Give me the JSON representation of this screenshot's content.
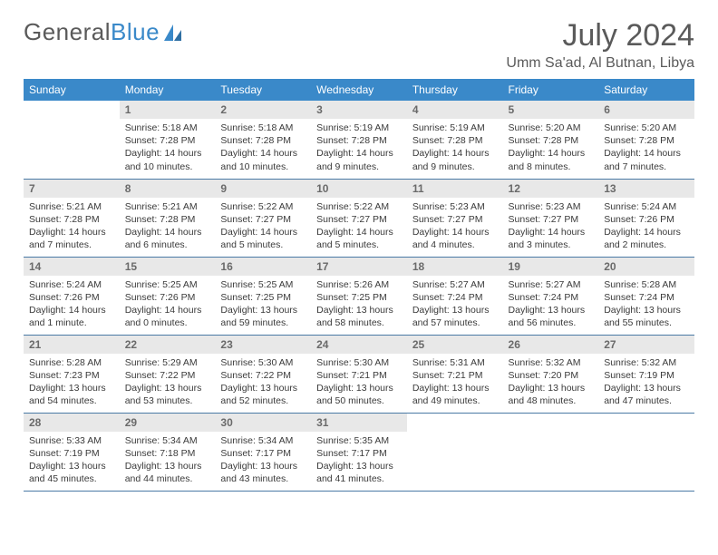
{
  "brand": {
    "part1": "General",
    "part2": "Blue"
  },
  "title": "July 2024",
  "location": "Umm Sa'ad, Al Butnan, Libya",
  "colors": {
    "header_bg": "#3a89c9",
    "header_text": "#ffffff",
    "daynum_bg": "#e8e8e8",
    "daynum_text": "#6a6a6a",
    "body_text": "#3a3a3a",
    "border": "#4a7aa5",
    "brand_gray": "#5a5a5a",
    "brand_blue": "#3a89c9"
  },
  "day_headers": [
    "Sunday",
    "Monday",
    "Tuesday",
    "Wednesday",
    "Thursday",
    "Friday",
    "Saturday"
  ],
  "weeks": [
    [
      null,
      {
        "n": "1",
        "sr": "5:18 AM",
        "ss": "7:28 PM",
        "dl": "14 hours and 10 minutes."
      },
      {
        "n": "2",
        "sr": "5:18 AM",
        "ss": "7:28 PM",
        "dl": "14 hours and 10 minutes."
      },
      {
        "n": "3",
        "sr": "5:19 AM",
        "ss": "7:28 PM",
        "dl": "14 hours and 9 minutes."
      },
      {
        "n": "4",
        "sr": "5:19 AM",
        "ss": "7:28 PM",
        "dl": "14 hours and 9 minutes."
      },
      {
        "n": "5",
        "sr": "5:20 AM",
        "ss": "7:28 PM",
        "dl": "14 hours and 8 minutes."
      },
      {
        "n": "6",
        "sr": "5:20 AM",
        "ss": "7:28 PM",
        "dl": "14 hours and 7 minutes."
      }
    ],
    [
      {
        "n": "7",
        "sr": "5:21 AM",
        "ss": "7:28 PM",
        "dl": "14 hours and 7 minutes."
      },
      {
        "n": "8",
        "sr": "5:21 AM",
        "ss": "7:28 PM",
        "dl": "14 hours and 6 minutes."
      },
      {
        "n": "9",
        "sr": "5:22 AM",
        "ss": "7:27 PM",
        "dl": "14 hours and 5 minutes."
      },
      {
        "n": "10",
        "sr": "5:22 AM",
        "ss": "7:27 PM",
        "dl": "14 hours and 5 minutes."
      },
      {
        "n": "11",
        "sr": "5:23 AM",
        "ss": "7:27 PM",
        "dl": "14 hours and 4 minutes."
      },
      {
        "n": "12",
        "sr": "5:23 AM",
        "ss": "7:27 PM",
        "dl": "14 hours and 3 minutes."
      },
      {
        "n": "13",
        "sr": "5:24 AM",
        "ss": "7:26 PM",
        "dl": "14 hours and 2 minutes."
      }
    ],
    [
      {
        "n": "14",
        "sr": "5:24 AM",
        "ss": "7:26 PM",
        "dl": "14 hours and 1 minute."
      },
      {
        "n": "15",
        "sr": "5:25 AM",
        "ss": "7:26 PM",
        "dl": "14 hours and 0 minutes."
      },
      {
        "n": "16",
        "sr": "5:25 AM",
        "ss": "7:25 PM",
        "dl": "13 hours and 59 minutes."
      },
      {
        "n": "17",
        "sr": "5:26 AM",
        "ss": "7:25 PM",
        "dl": "13 hours and 58 minutes."
      },
      {
        "n": "18",
        "sr": "5:27 AM",
        "ss": "7:24 PM",
        "dl": "13 hours and 57 minutes."
      },
      {
        "n": "19",
        "sr": "5:27 AM",
        "ss": "7:24 PM",
        "dl": "13 hours and 56 minutes."
      },
      {
        "n": "20",
        "sr": "5:28 AM",
        "ss": "7:24 PM",
        "dl": "13 hours and 55 minutes."
      }
    ],
    [
      {
        "n": "21",
        "sr": "5:28 AM",
        "ss": "7:23 PM",
        "dl": "13 hours and 54 minutes."
      },
      {
        "n": "22",
        "sr": "5:29 AM",
        "ss": "7:22 PM",
        "dl": "13 hours and 53 minutes."
      },
      {
        "n": "23",
        "sr": "5:30 AM",
        "ss": "7:22 PM",
        "dl": "13 hours and 52 minutes."
      },
      {
        "n": "24",
        "sr": "5:30 AM",
        "ss": "7:21 PM",
        "dl": "13 hours and 50 minutes."
      },
      {
        "n": "25",
        "sr": "5:31 AM",
        "ss": "7:21 PM",
        "dl": "13 hours and 49 minutes."
      },
      {
        "n": "26",
        "sr": "5:32 AM",
        "ss": "7:20 PM",
        "dl": "13 hours and 48 minutes."
      },
      {
        "n": "27",
        "sr": "5:32 AM",
        "ss": "7:19 PM",
        "dl": "13 hours and 47 minutes."
      }
    ],
    [
      {
        "n": "28",
        "sr": "5:33 AM",
        "ss": "7:19 PM",
        "dl": "13 hours and 45 minutes."
      },
      {
        "n": "29",
        "sr": "5:34 AM",
        "ss": "7:18 PM",
        "dl": "13 hours and 44 minutes."
      },
      {
        "n": "30",
        "sr": "5:34 AM",
        "ss": "7:17 PM",
        "dl": "13 hours and 43 minutes."
      },
      {
        "n": "31",
        "sr": "5:35 AM",
        "ss": "7:17 PM",
        "dl": "13 hours and 41 minutes."
      },
      null,
      null,
      null
    ]
  ],
  "labels": {
    "sunrise": "Sunrise:",
    "sunset": "Sunset:",
    "daylight": "Daylight:"
  }
}
